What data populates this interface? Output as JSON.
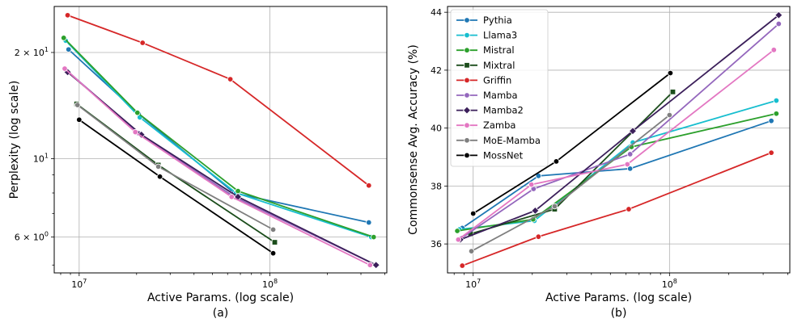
{
  "chart_data": [
    {
      "type": "line",
      "panel_label": "(a)",
      "xlabel": "Active Params. (log scale)",
      "ylabel": "Perplexity (log scale)",
      "x_scale": "log",
      "y_scale": "log",
      "xlim": [
        7400000,
        410000000
      ],
      "ylim": [
        4.75,
        27.0
      ],
      "x_ticks": [
        {
          "value": 10000000,
          "base": "10",
          "exp": "7"
        },
        {
          "value": 100000000,
          "base": "10",
          "exp": "8"
        }
      ],
      "y_ticks": [
        {
          "value": 6,
          "mant": "6 × 10",
          "exp": "0"
        },
        {
          "value": 10,
          "mant": "10",
          "exp": "1"
        },
        {
          "value": 20,
          "mant": "2 × 10",
          "exp": "1"
        }
      ],
      "grid": true,
      "legend": "none",
      "series": [
        {
          "name": "Pythia",
          "color": "#1f77b4",
          "marker": "circle",
          "x": [
            8800000,
            20500000,
            65000000,
            330000000
          ],
          "y": [
            20.4,
            13.4,
            8.0,
            6.6
          ]
        },
        {
          "name": "Llama3",
          "color": "#17becf",
          "marker": "circle",
          "x": [
            8500000,
            20800000,
            66500000,
            340000000
          ],
          "y": [
            21.6,
            13.1,
            8.0,
            6.0
          ]
        },
        {
          "name": "Mistral",
          "color": "#2ca02c",
          "marker": "circle",
          "x": [
            8300000,
            20200000,
            68000000,
            350000000
          ],
          "y": [
            22.0,
            13.5,
            8.1,
            6.0
          ]
        },
        {
          "name": "Mixtral",
          "color": "#1b4d1b",
          "marker": "square",
          "x": [
            9700000,
            26000000,
            106000000
          ],
          "y": [
            14.3,
            9.6,
            5.8
          ]
        },
        {
          "name": "Griffin",
          "color": "#d62728",
          "marker": "circle",
          "x": [
            8700000,
            21500000,
            62000000,
            330000000
          ],
          "y": [
            25.5,
            21.3,
            16.8,
            8.4
          ]
        },
        {
          "name": "Mamba",
          "color": "#9467bd",
          "marker": "circle",
          "x": [
            8600000,
            20500000,
            65000000,
            360000000
          ],
          "y": [
            17.8,
            11.8,
            7.8,
            5.0
          ]
        },
        {
          "name": "Mamba2",
          "color": "#3b1f5a",
          "marker": "diamond",
          "x": [
            8700000,
            21200000,
            68000000,
            360000000
          ],
          "y": [
            17.6,
            11.7,
            7.8,
            5.0
          ]
        },
        {
          "name": "Zamba",
          "color": "#e377c2",
          "marker": "circle",
          "x": [
            8400000,
            19700000,
            63000000,
            335000000
          ],
          "y": [
            18.0,
            11.9,
            7.8,
            5.0
          ]
        },
        {
          "name": "MoE-Mamba",
          "color": "#7f7f7f",
          "marker": "circle",
          "x": [
            9800000,
            26000000,
            104000000
          ],
          "y": [
            14.2,
            9.5,
            6.3
          ]
        },
        {
          "name": "MossNet",
          "color": "#000000",
          "marker": "circle",
          "x": [
            10000000,
            26500000,
            104000000
          ],
          "y": [
            12.9,
            8.9,
            5.4
          ]
        }
      ]
    },
    {
      "type": "line",
      "panel_label": "(b)",
      "xlabel": "Active Params. (log scale)",
      "ylabel": "Commonsense Avg. Accuracy (%)",
      "x_scale": "log",
      "y_scale": "linear",
      "xlim": [
        7400000,
        410000000
      ],
      "ylim": [
        35.0,
        44.2
      ],
      "x_ticks": [
        {
          "value": 10000000,
          "base": "10",
          "exp": "7"
        },
        {
          "value": 100000000,
          "base": "10",
          "exp": "8"
        }
      ],
      "y_ticks": [
        {
          "value": 36,
          "label": "36"
        },
        {
          "value": 38,
          "label": "38"
        },
        {
          "value": 40,
          "label": "40"
        },
        {
          "value": 42,
          "label": "42"
        },
        {
          "value": 44,
          "label": "44"
        }
      ],
      "grid": true,
      "legend": "top-left",
      "series": [
        {
          "name": "Pythia",
          "color": "#1f77b4",
          "marker": "circle",
          "x": [
            8800000,
            21500000,
            63000000,
            330000000
          ],
          "y": [
            36.55,
            38.35,
            38.6,
            40.25
          ]
        },
        {
          "name": "Llama3",
          "color": "#17becf",
          "marker": "circle",
          "x": [
            8500000,
            20500000,
            65000000,
            350000000
          ],
          "y": [
            36.5,
            36.8,
            39.5,
            40.95
          ]
        },
        {
          "name": "Mistral",
          "color": "#2ca02c",
          "marker": "circle",
          "x": [
            8300000,
            20200000,
            64000000,
            350000000
          ],
          "y": [
            36.45,
            36.85,
            39.35,
            40.5
          ]
        },
        {
          "name": "Mixtral",
          "color": "#1b4d1b",
          "marker": "square",
          "x": [
            9700000,
            26000000,
            104000000
          ],
          "y": [
            36.35,
            37.2,
            41.25
          ]
        },
        {
          "name": "Griffin",
          "color": "#d62728",
          "marker": "circle",
          "x": [
            8800000,
            21500000,
            62000000,
            330000000
          ],
          "y": [
            35.25,
            36.25,
            37.2,
            39.15
          ]
        },
        {
          "name": "Mamba",
          "color": "#9467bd",
          "marker": "circle",
          "x": [
            8700000,
            20300000,
            63000000,
            360000000
          ],
          "y": [
            36.2,
            37.9,
            39.1,
            43.6
          ]
        },
        {
          "name": "Mamba2",
          "color": "#3b1f5a",
          "marker": "diamond",
          "x": [
            8600000,
            20700000,
            65000000,
            360000000
          ],
          "y": [
            36.15,
            37.15,
            39.9,
            43.9
          ]
        },
        {
          "name": "Zamba",
          "color": "#e377c2",
          "marker": "circle",
          "x": [
            8400000,
            19800000,
            61000000,
            340000000
          ],
          "y": [
            36.15,
            38.05,
            38.75,
            42.7
          ]
        },
        {
          "name": "MoE-Mamba",
          "color": "#7f7f7f",
          "marker": "circle",
          "x": [
            9800000,
            26000000,
            100000000
          ],
          "y": [
            35.75,
            37.3,
            40.45
          ]
        },
        {
          "name": "MossNet",
          "color": "#000000",
          "marker": "circle",
          "x": [
            10000000,
            26500000,
            101000000
          ],
          "y": [
            37.05,
            38.85,
            41.9
          ]
        }
      ]
    }
  ]
}
